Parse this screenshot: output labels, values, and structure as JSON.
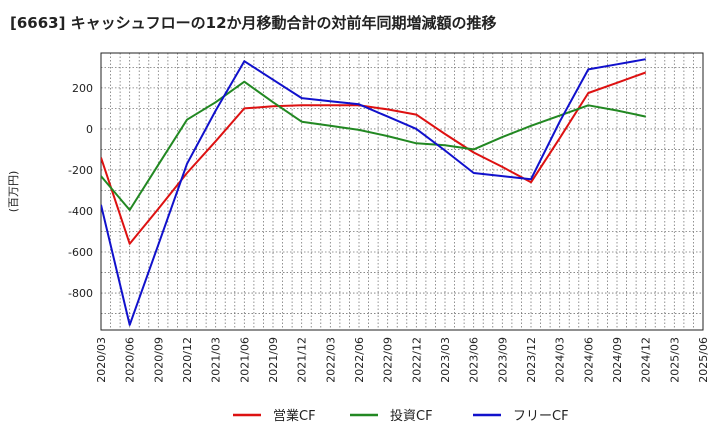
{
  "chart_data": {
    "type": "line",
    "title": "[6663]  キャッシュフローの12か月移動合計の対前年同期増減額の推移",
    "ylabel": "(百万円)",
    "xlabel": "",
    "ylim": [
      -980,
      370
    ],
    "yticks": [
      -800,
      -600,
      -400,
      -200,
      0,
      200
    ],
    "categories": [
      "2020/03",
      "2020/06",
      "2020/09",
      "2020/12",
      "2021/03",
      "2021/06",
      "2021/09",
      "2021/12",
      "2022/03",
      "2022/06",
      "2022/09",
      "2022/12",
      "2023/03",
      "2023/06",
      "2023/09",
      "2023/12",
      "2024/03",
      "2024/06",
      "2024/09",
      "2024/12",
      "2025/03",
      "2025/06"
    ],
    "grid": true,
    "legend_position": "bottom",
    "series": [
      {
        "name": "営業CF",
        "color": "#dd1111",
        "values": [
          -140,
          -560,
          -390,
          -215,
          -60,
          100,
          110,
          115,
          115,
          115,
          95,
          70,
          -25,
          -115,
          -185,
          -260,
          -45,
          175,
          225,
          275,
          null,
          null
        ]
      },
      {
        "name": "投資CF",
        "color": "#228822",
        "values": [
          -230,
          -395,
          -175,
          45,
          130,
          230,
          130,
          35,
          15,
          -5,
          -35,
          -70,
          -80,
          -100,
          -40,
          15,
          65,
          115,
          90,
          60,
          null,
          null
        ]
      },
      {
        "name": "フリーCF",
        "color": "#1111cc",
        "values": [
          -370,
          -955,
          -565,
          -170,
          90,
          330,
          240,
          150,
          135,
          120,
          60,
          0,
          -105,
          -215,
          -230,
          -245,
          35,
          290,
          315,
          340,
          null,
          null
        ]
      }
    ]
  }
}
